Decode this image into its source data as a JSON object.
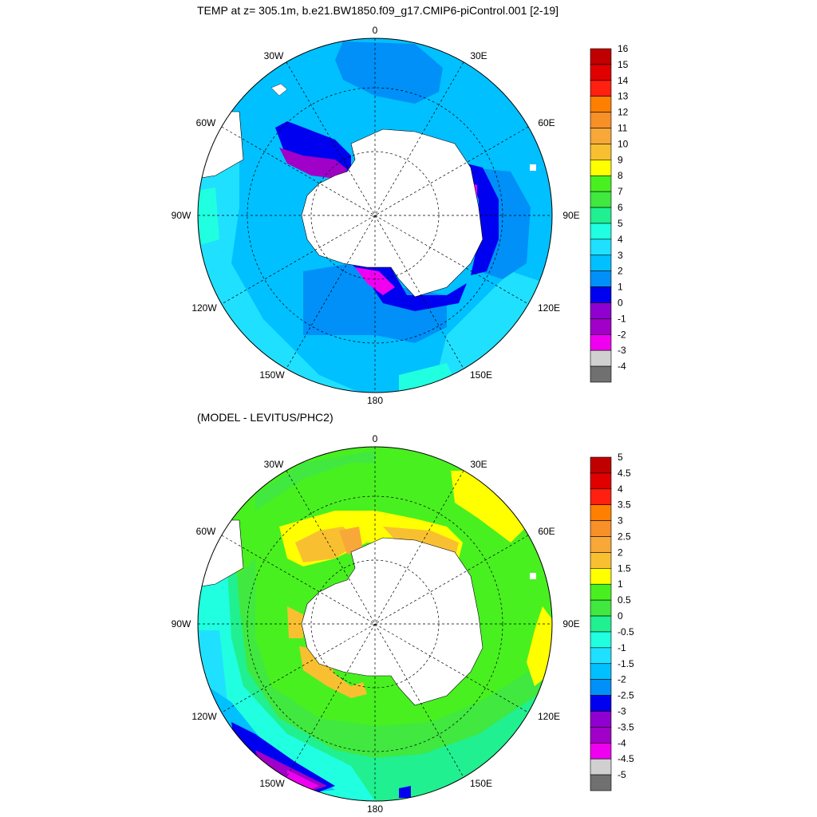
{
  "panels": [
    {
      "title": "TEMP at z= 305.1m, b.e21.BW1850.f09_g17.CMIP6-piControl.001 [2-19]",
      "lon_labels": {
        "deg0": "0",
        "e30": "30E",
        "e60": "60E",
        "e90": "90E",
        "e120": "120E",
        "e150": "150E",
        "deg180": "180",
        "w150": "150W",
        "w120": "120W",
        "w90": "90W",
        "w60": "60W",
        "w30": "30W"
      },
      "colorbar": {
        "labels": [
          "16",
          "15",
          "14",
          "13",
          "12",
          "11",
          "10",
          "9",
          "8",
          "7",
          "6",
          "5",
          "4",
          "3",
          "2",
          "1",
          "0",
          "-1",
          "-2",
          "-3",
          "-4"
        ],
        "colors": [
          "#c00000",
          "#e00000",
          "#ff2010",
          "#ff8000",
          "#f89028",
          "#f8a838",
          "#f8c030",
          "#ffff00",
          "#48f020",
          "#40e840",
          "#20f090",
          "#20ffe0",
          "#20e0ff",
          "#00c0ff",
          "#0090f8",
          "#0000f0",
          "#9000d0",
          "#a000c8",
          "#f000f0",
          "#d0d0d0",
          "#707070"
        ]
      }
    },
    {
      "title": "(MODEL - LEVITUS/PHC2)",
      "lon_labels": {
        "deg0": "0",
        "e30": "30E",
        "e60": "60E",
        "e90": "90E",
        "e120": "120E",
        "e150": "150E",
        "deg180": "180",
        "w150": "150W",
        "w120": "120W",
        "w90": "90W",
        "w60": "60W",
        "w30": "30W"
      },
      "colorbar": {
        "labels": [
          "5",
          "4.5",
          "4",
          "3.5",
          "3",
          "2.5",
          "2",
          "1.5",
          "1",
          "0.5",
          "0",
          "-0.5",
          "-1",
          "-1.5",
          "-2",
          "-2.5",
          "-3",
          "-3.5",
          "-4",
          "-4.5",
          "-5"
        ],
        "colors": [
          "#c00000",
          "#e00000",
          "#ff2010",
          "#ff8000",
          "#f89028",
          "#f8a838",
          "#f8c030",
          "#ffff00",
          "#48f020",
          "#40e840",
          "#20f090",
          "#20ffe0",
          "#20e0ff",
          "#00c0ff",
          "#0090f8",
          "#0000f0",
          "#9000d0",
          "#a000c8",
          "#f000f0",
          "#d0d0d0",
          "#707070"
        ]
      }
    }
  ],
  "colors": {
    "land": "#ffffff",
    "coast": "#000000",
    "grid": "#000000"
  }
}
